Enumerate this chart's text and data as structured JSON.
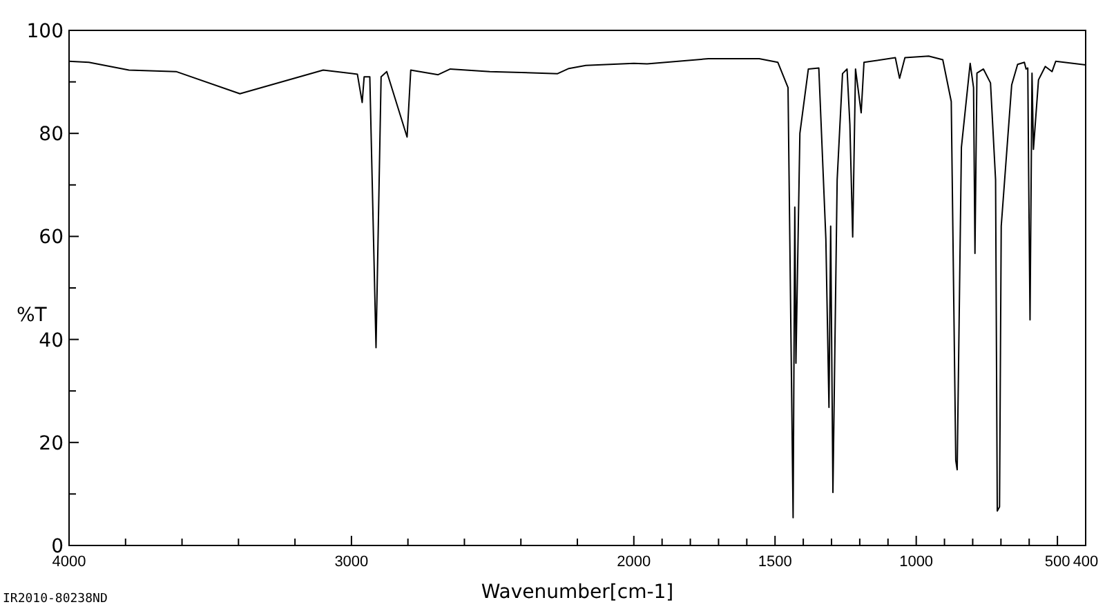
{
  "chart_data": {
    "type": "line",
    "xlabel": "Wavenumber[cm-1]",
    "ylabel": "%T",
    "annotations": [
      "IR2010-80238ND"
    ],
    "xlim": [
      4000,
      400
    ],
    "ylim": [
      0,
      100
    ],
    "xticks": [
      4000,
      {
        "value": 3800,
        "label": null
      },
      {
        "value": 3600,
        "label": null
      },
      {
        "value": 3400,
        "label": null
      },
      {
        "value": 3200,
        "label": null
      },
      3000,
      {
        "value": 2800,
        "label": null
      },
      {
        "value": 2600,
        "label": null
      },
      {
        "value": 2400,
        "label": null
      },
      {
        "value": 2200,
        "label": null
      },
      2000,
      {
        "value": 1900,
        "label": null
      },
      {
        "value": 1800,
        "label": null
      },
      {
        "value": 1700,
        "label": null
      },
      {
        "value": 1600,
        "label": null
      },
      1500,
      {
        "value": 1400,
        "label": null
      },
      {
        "value": 1300,
        "label": null
      },
      {
        "value": 1200,
        "label": null
      },
      {
        "value": 1100,
        "label": null
      },
      1000,
      {
        "value": 900,
        "label": null
      },
      {
        "value": 800,
        "label": null
      },
      {
        "value": 700,
        "label": null
      },
      {
        "value": 600,
        "label": null
      },
      500,
      400
    ],
    "yticks": [
      0,
      {
        "value": 10,
        "label": null
      },
      20,
      {
        "value": 30,
        "label": null
      },
      40,
      {
        "value": 50,
        "label": null
      },
      60,
      {
        "value": 70,
        "label": null
      },
      80,
      {
        "value": 90,
        "label": null
      },
      100
    ],
    "grid": false,
    "marker": "none",
    "line_style": "solid",
    "series": [
      {
        "color": "#000000",
        "x": [
          4000,
          3930,
          3788,
          3621,
          3395,
          3100,
          2979,
          2962,
          2955,
          2935,
          2913,
          2895,
          2875,
          2803,
          2790,
          2693,
          2650,
          2510,
          2270,
          2230,
          2170,
          2000,
          1953,
          1736,
          1556,
          1490,
          1454,
          1436,
          1430,
          1426,
          1412,
          1382,
          1345,
          1320,
          1309,
          1303,
          1295,
          1280,
          1261,
          1245,
          1235,
          1225,
          1215,
          1195,
          1185,
          1160,
          1074,
          1059,
          1040,
          956,
          906,
          876,
          860,
          855,
          840,
          809,
          797,
          792,
          785,
          762,
          737,
          719,
          713,
          705,
          699,
          662,
          641,
          617,
          611,
          605,
          601,
          597,
          590,
          585,
          567,
          543,
          519,
          506,
          400
        ],
        "values": [
          94,
          93.8,
          92.3,
          92,
          87.7,
          92.3,
          91.5,
          86,
          91,
          91,
          38.4,
          91,
          92,
          79.3,
          92.3,
          91.4,
          92.5,
          92,
          91.6,
          92.6,
          93.2,
          93.6,
          93.5,
          94.5,
          94.5,
          93.8,
          88.9,
          5.4,
          65.7,
          35.4,
          80,
          92.5,
          92.7,
          59.5,
          26.8,
          62,
          10.3,
          71,
          91.6,
          92.5,
          81.8,
          59.9,
          92.5,
          84,
          93.8,
          94,
          94.7,
          90.7,
          94.7,
          95,
          94.3,
          86.2,
          16.5,
          14.7,
          77.3,
          93.6,
          88.9,
          56.7,
          91.7,
          92.5,
          89.8,
          71,
          6.7,
          7.5,
          62,
          89.4,
          93.4,
          93.8,
          92.5,
          92.7,
          66.6,
          43.8,
          91.7,
          76.9,
          90.4,
          93,
          92,
          94,
          93.3
        ]
      }
    ]
  }
}
